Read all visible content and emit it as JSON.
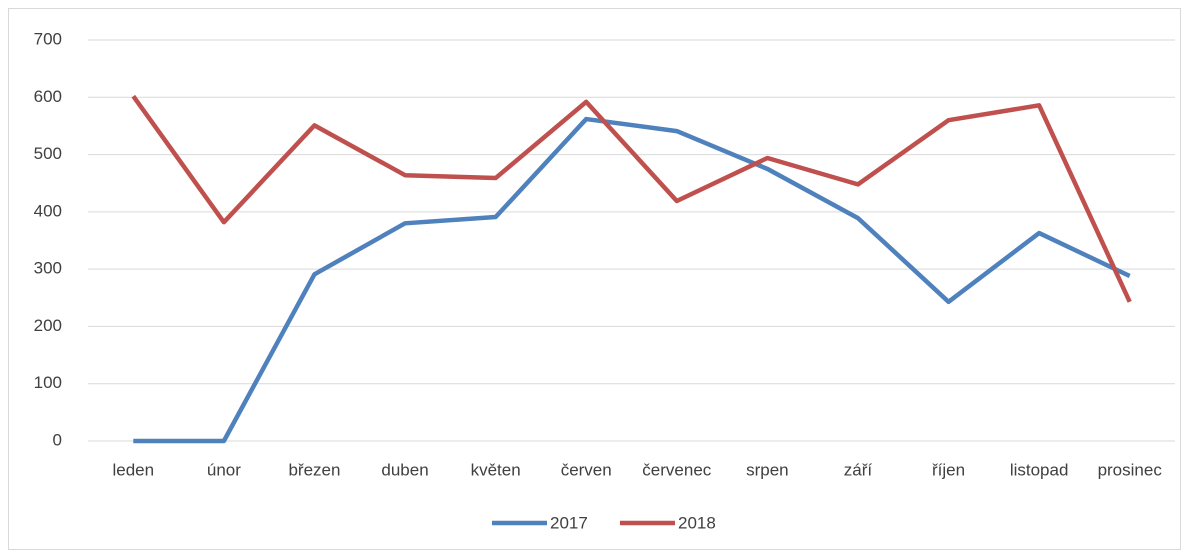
{
  "chart_data": {
    "type": "line",
    "categories": [
      "leden",
      "únor",
      "březen",
      "duben",
      "květen",
      "červen",
      "červenec",
      "srpen",
      "září",
      "říjen",
      "listopad",
      "prosinec"
    ],
    "series": [
      {
        "name": "2017",
        "color": "#4f81bd",
        "values": [
          0,
          0,
          291,
          380,
          391,
          562,
          541,
          475,
          389,
          243,
          363,
          288
        ]
      },
      {
        "name": "2018",
        "color": "#c0504d",
        "values": [
          602,
          382,
          551,
          464,
          459,
          592,
          419,
          494,
          448,
          560,
          586,
          243
        ]
      }
    ],
    "ylim": [
      0,
      700
    ],
    "yticks": [
      0,
      100,
      200,
      300,
      400,
      500,
      600,
      700
    ],
    "grid": true,
    "legend": "bottom"
  }
}
